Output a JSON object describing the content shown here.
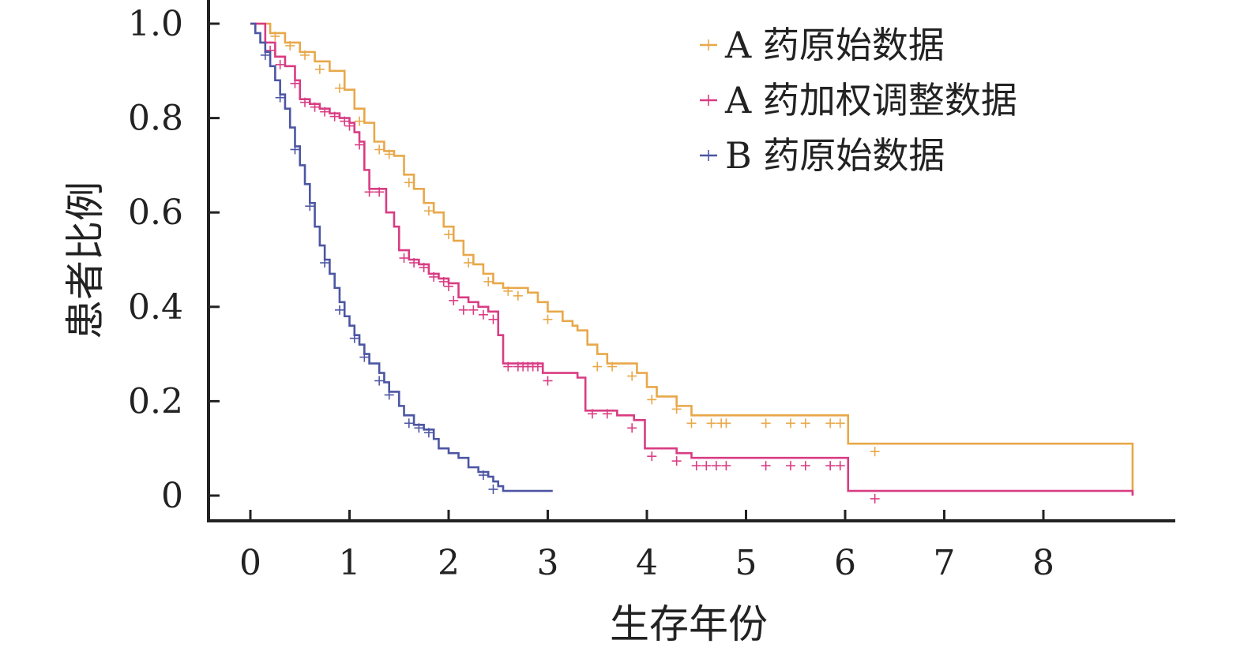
{
  "chart_data": {
    "type": "line",
    "xlabel": "生存年份",
    "ylabel": "患者比例",
    "xlim": [
      0,
      9
    ],
    "ylim": [
      0,
      1.0
    ],
    "x_ticks": [
      0,
      1,
      2,
      3,
      4,
      5,
      6,
      7,
      8
    ],
    "x_tick_labels": [
      "0",
      "1",
      "2",
      "3",
      "4",
      "5",
      "6",
      "7",
      "8"
    ],
    "y_ticks": [
      0,
      0.2,
      0.4,
      0.6,
      0.8,
      1.0
    ],
    "y_tick_labels": [
      "0",
      "0.2",
      "0.4",
      "0.6",
      "0.8",
      "1.0"
    ],
    "legend_position": "top-right",
    "grid": false,
    "series": [
      {
        "name": "A 药原始数据",
        "color": "#E8A84A",
        "points": [
          [
            0,
            1.0
          ],
          [
            0.12,
            1.0
          ],
          [
            0.2,
            0.98
          ],
          [
            0.35,
            0.96
          ],
          [
            0.5,
            0.94
          ],
          [
            0.65,
            0.92
          ],
          [
            0.8,
            0.9
          ],
          [
            0.95,
            0.86
          ],
          [
            1.05,
            0.82
          ],
          [
            1.15,
            0.79
          ],
          [
            1.25,
            0.75
          ],
          [
            1.35,
            0.73
          ],
          [
            1.45,
            0.72
          ],
          [
            1.55,
            0.68
          ],
          [
            1.65,
            0.65
          ],
          [
            1.75,
            0.62
          ],
          [
            1.85,
            0.6
          ],
          [
            1.95,
            0.57
          ],
          [
            2.05,
            0.54
          ],
          [
            2.15,
            0.51
          ],
          [
            2.25,
            0.49
          ],
          [
            2.35,
            0.47
          ],
          [
            2.45,
            0.45
          ],
          [
            2.55,
            0.44
          ],
          [
            2.8,
            0.43
          ],
          [
            2.9,
            0.41
          ],
          [
            3.0,
            0.39
          ],
          [
            3.15,
            0.37
          ],
          [
            3.25,
            0.36
          ],
          [
            3.3,
            0.35
          ],
          [
            3.4,
            0.32
          ],
          [
            3.5,
            0.3
          ],
          [
            3.6,
            0.28
          ],
          [
            3.9,
            0.26
          ],
          [
            4.0,
            0.23
          ],
          [
            4.1,
            0.21
          ],
          [
            4.3,
            0.19
          ],
          [
            4.45,
            0.17
          ],
          [
            6.03,
            0.17
          ],
          [
            6.03,
            0.11
          ],
          [
            8.9,
            0.11
          ],
          [
            8.9,
            0.0
          ]
        ],
        "censored": [
          [
            0.25,
            0.98
          ],
          [
            0.4,
            0.96
          ],
          [
            0.55,
            0.94
          ],
          [
            0.7,
            0.91
          ],
          [
            0.9,
            0.87
          ],
          [
            1.1,
            0.8
          ],
          [
            1.3,
            0.74
          ],
          [
            1.4,
            0.73
          ],
          [
            1.6,
            0.67
          ],
          [
            1.8,
            0.61
          ],
          [
            2.0,
            0.56
          ],
          [
            2.2,
            0.5
          ],
          [
            2.4,
            0.46
          ],
          [
            2.6,
            0.44
          ],
          [
            2.7,
            0.43
          ],
          [
            3.0,
            0.38
          ],
          [
            3.5,
            0.28
          ],
          [
            3.65,
            0.28
          ],
          [
            3.85,
            0.26
          ],
          [
            4.05,
            0.21
          ],
          [
            4.3,
            0.19
          ],
          [
            4.45,
            0.16
          ],
          [
            4.65,
            0.16
          ],
          [
            4.75,
            0.16
          ],
          [
            4.8,
            0.16
          ],
          [
            5.2,
            0.16
          ],
          [
            5.45,
            0.16
          ],
          [
            5.6,
            0.16
          ],
          [
            5.85,
            0.16
          ],
          [
            5.95,
            0.16
          ],
          [
            6.3,
            0.1
          ]
        ]
      },
      {
        "name": "A 药加权调整数据",
        "color": "#D93C83",
        "points": [
          [
            0,
            1.0
          ],
          [
            0.1,
            1.0
          ],
          [
            0.15,
            0.96
          ],
          [
            0.25,
            0.93
          ],
          [
            0.35,
            0.91
          ],
          [
            0.45,
            0.88
          ],
          [
            0.5,
            0.84
          ],
          [
            0.6,
            0.83
          ],
          [
            0.7,
            0.82
          ],
          [
            0.8,
            0.81
          ],
          [
            0.9,
            0.8
          ],
          [
            1.0,
            0.79
          ],
          [
            1.05,
            0.77
          ],
          [
            1.1,
            0.75
          ],
          [
            1.15,
            0.73
          ],
          [
            1.15,
            0.69
          ],
          [
            1.2,
            0.65
          ],
          [
            1.37,
            0.65
          ],
          [
            1.37,
            0.6
          ],
          [
            1.45,
            0.57
          ],
          [
            1.5,
            0.52
          ],
          [
            1.6,
            0.5
          ],
          [
            1.7,
            0.49
          ],
          [
            1.8,
            0.47
          ],
          [
            1.9,
            0.46
          ],
          [
            2.0,
            0.45
          ],
          [
            2.1,
            0.42
          ],
          [
            2.2,
            0.41
          ],
          [
            2.3,
            0.4
          ],
          [
            2.4,
            0.39
          ],
          [
            2.5,
            0.38
          ],
          [
            2.5,
            0.34
          ],
          [
            2.55,
            0.32
          ],
          [
            2.55,
            0.28
          ],
          [
            2.95,
            0.28
          ],
          [
            2.95,
            0.26
          ],
          [
            3.2,
            0.26
          ],
          [
            3.3,
            0.25
          ],
          [
            3.38,
            0.24
          ],
          [
            3.38,
            0.18
          ],
          [
            3.7,
            0.18
          ],
          [
            3.7,
            0.17
          ],
          [
            3.8,
            0.17
          ],
          [
            3.87,
            0.16
          ],
          [
            3.98,
            0.15
          ],
          [
            3.98,
            0.1
          ],
          [
            4.2,
            0.1
          ],
          [
            4.3,
            0.09
          ],
          [
            4.45,
            0.08
          ],
          [
            6.03,
            0.08
          ],
          [
            6.03,
            0.01
          ],
          [
            8.9,
            0.01
          ],
          [
            8.9,
            0.0
          ]
        ],
        "censored": [
          [
            0.2,
            0.95
          ],
          [
            0.3,
            0.92
          ],
          [
            0.45,
            0.88
          ],
          [
            0.55,
            0.84
          ],
          [
            0.65,
            0.83
          ],
          [
            0.75,
            0.82
          ],
          [
            0.85,
            0.81
          ],
          [
            0.95,
            0.8
          ],
          [
            1.0,
            0.79
          ],
          [
            1.1,
            0.75
          ],
          [
            1.2,
            0.65
          ],
          [
            1.3,
            0.65
          ],
          [
            1.55,
            0.51
          ],
          [
            1.65,
            0.5
          ],
          [
            1.75,
            0.49
          ],
          [
            1.85,
            0.47
          ],
          [
            1.95,
            0.46
          ],
          [
            2.0,
            0.45
          ],
          [
            2.05,
            0.42
          ],
          [
            2.15,
            0.4
          ],
          [
            2.25,
            0.4
          ],
          [
            2.35,
            0.39
          ],
          [
            2.45,
            0.38
          ],
          [
            2.6,
            0.28
          ],
          [
            2.7,
            0.28
          ],
          [
            2.75,
            0.28
          ],
          [
            2.8,
            0.28
          ],
          [
            2.85,
            0.28
          ],
          [
            2.9,
            0.28
          ],
          [
            3.0,
            0.25
          ],
          [
            3.45,
            0.18
          ],
          [
            3.6,
            0.18
          ],
          [
            3.85,
            0.15
          ],
          [
            4.05,
            0.09
          ],
          [
            4.3,
            0.08
          ],
          [
            4.5,
            0.07
          ],
          [
            4.6,
            0.07
          ],
          [
            4.7,
            0.07
          ],
          [
            4.8,
            0.07
          ],
          [
            5.2,
            0.07
          ],
          [
            5.45,
            0.07
          ],
          [
            5.6,
            0.07
          ],
          [
            5.85,
            0.07
          ],
          [
            5.95,
            0.07
          ],
          [
            6.3,
            0.0
          ]
        ]
      },
      {
        "name": "B 药原始数据",
        "color": "#4C56A3",
        "points": [
          [
            0,
            1.0
          ],
          [
            0.05,
            0.98
          ],
          [
            0.1,
            0.96
          ],
          [
            0.15,
            0.94
          ],
          [
            0.2,
            0.91
          ],
          [
            0.25,
            0.88
          ],
          [
            0.3,
            0.85
          ],
          [
            0.35,
            0.82
          ],
          [
            0.4,
            0.78
          ],
          [
            0.45,
            0.74
          ],
          [
            0.5,
            0.7
          ],
          [
            0.55,
            0.66
          ],
          [
            0.6,
            0.62
          ],
          [
            0.65,
            0.57
          ],
          [
            0.7,
            0.53
          ],
          [
            0.75,
            0.5
          ],
          [
            0.8,
            0.47
          ],
          [
            0.85,
            0.44
          ],
          [
            0.9,
            0.41
          ],
          [
            0.95,
            0.38
          ],
          [
            1.0,
            0.36
          ],
          [
            1.05,
            0.34
          ],
          [
            1.1,
            0.32
          ],
          [
            1.15,
            0.3
          ],
          [
            1.2,
            0.28
          ],
          [
            1.3,
            0.26
          ],
          [
            1.35,
            0.24
          ],
          [
            1.4,
            0.22
          ],
          [
            1.5,
            0.19
          ],
          [
            1.55,
            0.17
          ],
          [
            1.65,
            0.15
          ],
          [
            1.75,
            0.14
          ],
          [
            1.85,
            0.12
          ],
          [
            1.9,
            0.1
          ],
          [
            2.0,
            0.09
          ],
          [
            2.1,
            0.08
          ],
          [
            2.2,
            0.06
          ],
          [
            2.3,
            0.05
          ],
          [
            2.4,
            0.04
          ],
          [
            2.45,
            0.03
          ],
          [
            2.5,
            0.02
          ],
          [
            2.55,
            0.01
          ],
          [
            3.05,
            0.01
          ]
        ],
        "censored": [
          [
            0.15,
            0.94
          ],
          [
            0.3,
            0.85
          ],
          [
            0.45,
            0.74
          ],
          [
            0.6,
            0.62
          ],
          [
            0.75,
            0.5
          ],
          [
            0.9,
            0.4
          ],
          [
            1.05,
            0.34
          ],
          [
            1.15,
            0.3
          ],
          [
            1.3,
            0.25
          ],
          [
            1.4,
            0.22
          ],
          [
            1.6,
            0.16
          ],
          [
            1.7,
            0.15
          ],
          [
            1.8,
            0.14
          ],
          [
            2.35,
            0.05
          ],
          [
            2.45,
            0.02
          ]
        ]
      }
    ]
  }
}
